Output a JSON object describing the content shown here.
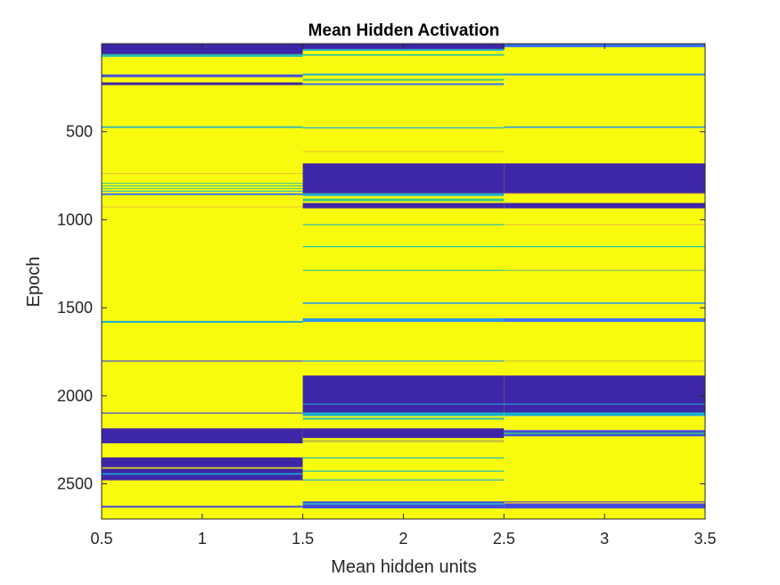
{
  "chart_data": {
    "type": "heatmap",
    "title": "Mean Hidden Activation",
    "xlabel": "Mean hidden units",
    "ylabel": "Epoch",
    "xlim": [
      0.5,
      3.5
    ],
    "ylim": [
      0,
      2700
    ],
    "y_direction": "reversed",
    "x_ticks": [
      0.5,
      1,
      1.5,
      2,
      2.5,
      3,
      3.5
    ],
    "x_tick_labels": [
      "0.5",
      "1",
      "1.5",
      "2",
      "2.5",
      "3",
      "3.5"
    ],
    "y_ticks": [
      500,
      1000,
      1500,
      2000,
      2500
    ],
    "y_tick_labels": [
      "500",
      "1000",
      "1500",
      "2000",
      "2500"
    ],
    "columns": [
      1,
      2,
      3
    ],
    "colormap": "parula",
    "colors": {
      "high": "#F9FB0E",
      "low": "#3E26A8",
      "mid": "#15B9C8"
    },
    "grid": false,
    "legend": "none",
    "background_value": 1,
    "bands": [
      [
        {
          "start": 0,
          "end": 60,
          "value": 0
        },
        {
          "start": 60,
          "end": 75,
          "value": 0.5
        },
        {
          "start": 175,
          "end": 190,
          "value": 0.1
        },
        {
          "start": 220,
          "end": 235,
          "value": 0
        },
        {
          "start": 470,
          "end": 478,
          "value": 0.4
        },
        {
          "start": 735,
          "end": 740,
          "value": 0.85
        },
        {
          "start": 790,
          "end": 795,
          "value": 0.6
        },
        {
          "start": 805,
          "end": 810,
          "value": 0.5
        },
        {
          "start": 820,
          "end": 825,
          "value": 0.6
        },
        {
          "start": 835,
          "end": 840,
          "value": 0.4
        },
        {
          "start": 850,
          "end": 860,
          "value": 0.2
        },
        {
          "start": 925,
          "end": 930,
          "value": 0.85
        },
        {
          "start": 1575,
          "end": 1585,
          "value": 0.4
        },
        {
          "start": 1800,
          "end": 1806,
          "value": 0.1
        },
        {
          "start": 2095,
          "end": 2101,
          "value": 0.1
        },
        {
          "start": 2185,
          "end": 2270,
          "value": 0
        },
        {
          "start": 2350,
          "end": 2480,
          "value": 0
        },
        {
          "start": 2405,
          "end": 2415,
          "value": 0.8
        },
        {
          "start": 2440,
          "end": 2448,
          "value": 0.4
        },
        {
          "start": 2625,
          "end": 2635,
          "value": 0.1
        }
      ],
      [
        {
          "start": 0,
          "end": 30,
          "value": 0
        },
        {
          "start": 30,
          "end": 40,
          "value": 0.4
        },
        {
          "start": 60,
          "end": 68,
          "value": 0.5
        },
        {
          "start": 170,
          "end": 180,
          "value": 0.4
        },
        {
          "start": 200,
          "end": 210,
          "value": 0.6
        },
        {
          "start": 225,
          "end": 235,
          "value": 0.2
        },
        {
          "start": 475,
          "end": 481,
          "value": 0.4
        },
        {
          "start": 610,
          "end": 614,
          "value": 0.85
        },
        {
          "start": 680,
          "end": 850,
          "value": 0
        },
        {
          "start": 850,
          "end": 865,
          "value": 0.4
        },
        {
          "start": 880,
          "end": 895,
          "value": 0.6
        },
        {
          "start": 905,
          "end": 935,
          "value": 0
        },
        {
          "start": 1025,
          "end": 1031,
          "value": 0.5
        },
        {
          "start": 1150,
          "end": 1156,
          "value": 0.5
        },
        {
          "start": 1285,
          "end": 1291,
          "value": 0.6
        },
        {
          "start": 1470,
          "end": 1478,
          "value": 0.3
        },
        {
          "start": 1560,
          "end": 1580,
          "value": 0.3
        },
        {
          "start": 1800,
          "end": 1806,
          "value": 0.3
        },
        {
          "start": 1885,
          "end": 2095,
          "value": 0
        },
        {
          "start": 2045,
          "end": 2050,
          "value": 0.4
        },
        {
          "start": 2095,
          "end": 2115,
          "value": 0.4
        },
        {
          "start": 2125,
          "end": 2135,
          "value": 0.5
        },
        {
          "start": 2185,
          "end": 2240,
          "value": 0
        },
        {
          "start": 2250,
          "end": 2265,
          "value": 0.8
        },
        {
          "start": 2350,
          "end": 2356,
          "value": 0.5
        },
        {
          "start": 2425,
          "end": 2431,
          "value": 0.5
        },
        {
          "start": 2475,
          "end": 2481,
          "value": 0.4
        },
        {
          "start": 2600,
          "end": 2640,
          "value": 0.1
        },
        {
          "start": 2610,
          "end": 2618,
          "value": 0.5
        }
      ],
      [
        {
          "start": 0,
          "end": 20,
          "value": 0.2
        },
        {
          "start": 170,
          "end": 180,
          "value": 0.3
        },
        {
          "start": 470,
          "end": 478,
          "value": 0.3
        },
        {
          "start": 680,
          "end": 850,
          "value": 0
        },
        {
          "start": 850,
          "end": 855,
          "value": 0.9
        },
        {
          "start": 905,
          "end": 935,
          "value": 0
        },
        {
          "start": 1025,
          "end": 1031,
          "value": 0.85
        },
        {
          "start": 1150,
          "end": 1156,
          "value": 0.5
        },
        {
          "start": 1285,
          "end": 1291,
          "value": 0.7
        },
        {
          "start": 1470,
          "end": 1478,
          "value": 0.3
        },
        {
          "start": 1560,
          "end": 1580,
          "value": 0.2
        },
        {
          "start": 1800,
          "end": 1805,
          "value": 0.8
        },
        {
          "start": 1885,
          "end": 2095,
          "value": 0
        },
        {
          "start": 2045,
          "end": 2050,
          "value": 0.4
        },
        {
          "start": 2095,
          "end": 2115,
          "value": 0.4
        },
        {
          "start": 2195,
          "end": 2230,
          "value": 0.1
        },
        {
          "start": 2210,
          "end": 2218,
          "value": 0.6
        },
        {
          "start": 2600,
          "end": 2640,
          "value": 0.1
        },
        {
          "start": 2605,
          "end": 2612,
          "value": 0.9
        }
      ]
    ]
  }
}
